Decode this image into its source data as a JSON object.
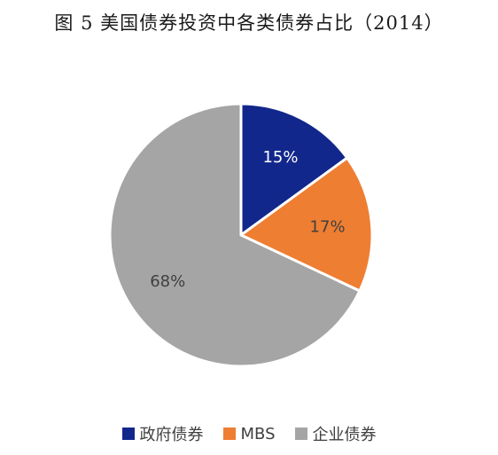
{
  "chart_data": {
    "type": "pie",
    "title": "图 5  美国债券投资中各类债券占比（2014）",
    "categories": [
      "政府债券",
      "MBS",
      "企业债券"
    ],
    "values": [
      15,
      17,
      68
    ],
    "labels": [
      "15%",
      "17%",
      "68%"
    ],
    "colors": [
      "#12278B",
      "#EE7E32",
      "#A5A5A5"
    ],
    "label_colors": [
      "#FFFFFF",
      "#404040",
      "#404040"
    ],
    "start_angle": "12 o'clock",
    "direction": "clockwise",
    "legend": {
      "placement": "bottom",
      "entries": [
        "政府债券",
        "MBS",
        "企业债券"
      ]
    }
  }
}
